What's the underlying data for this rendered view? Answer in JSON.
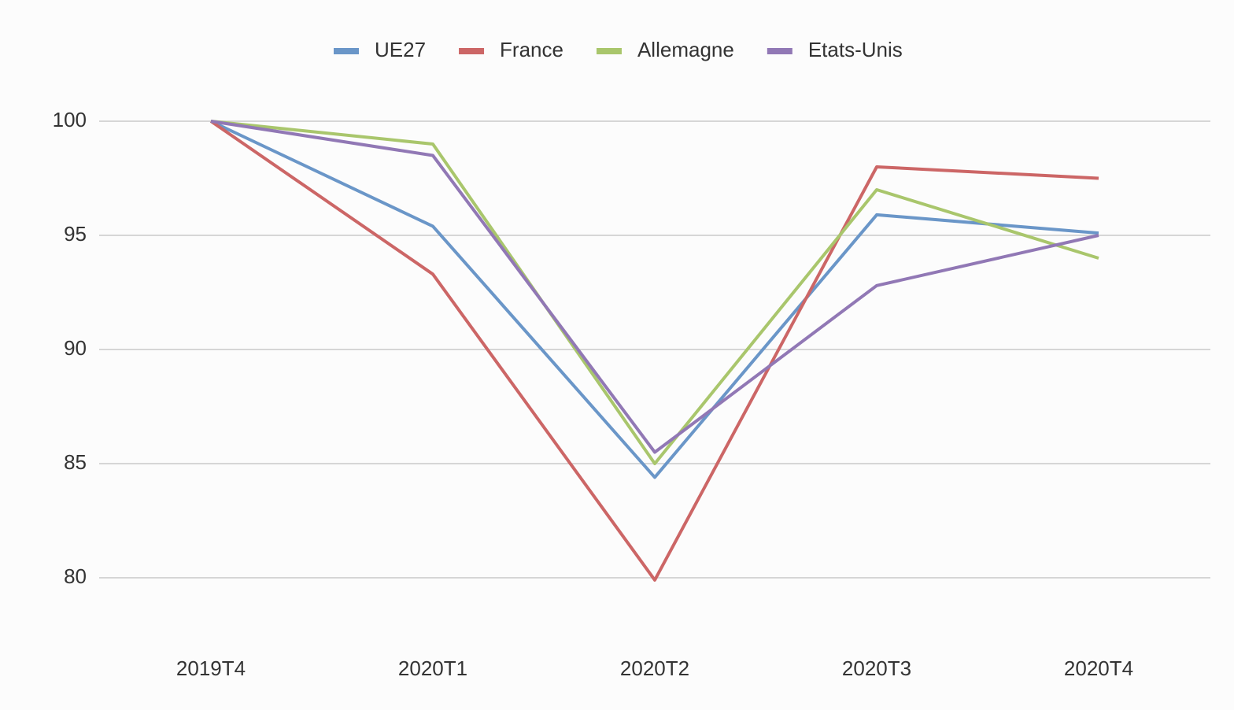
{
  "chart_data": {
    "type": "line",
    "categories": [
      "2019T4",
      "2020T1",
      "2020T2",
      "2020T3",
      "2020T4"
    ],
    "series": [
      {
        "name": "UE27",
        "color": "#6a96c8",
        "values": [
          100,
          95.4,
          84.4,
          95.9,
          95.1
        ]
      },
      {
        "name": "France",
        "color": "#cc6666",
        "values": [
          100,
          93.3,
          79.9,
          98.0,
          97.5
        ]
      },
      {
        "name": "Allemagne",
        "color": "#a9c66c",
        "values": [
          100,
          99.0,
          85.0,
          97.0,
          94.0
        ]
      },
      {
        "name": "Etats-Unis",
        "color": "#9178b5",
        "values": [
          100,
          98.5,
          85.5,
          92.8,
          95.0
        ]
      }
    ],
    "ylim": [
      80,
      100
    ],
    "yticks": [
      80,
      85,
      90,
      95,
      100
    ],
    "grid": true,
    "legend": "top"
  }
}
